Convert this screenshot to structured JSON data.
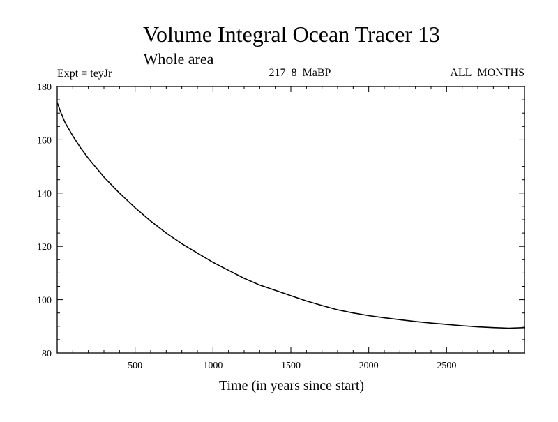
{
  "chart_data": {
    "type": "line",
    "title": "Volume Integral Ocean Tracer 13",
    "subtitle": "Whole area",
    "experiment_label": "Expt = teyJr",
    "run_label": "217_8_MaBP",
    "months_label": "ALL_MONTHS",
    "xlabel": "Time (in years since start)",
    "ylabel": "",
    "xlim": [
      0,
      3000
    ],
    "ylim": [
      80,
      180
    ],
    "x_ticks": [
      500,
      1000,
      1500,
      2000,
      2500
    ],
    "y_ticks": [
      80,
      100,
      120,
      140,
      160,
      180
    ],
    "grid": false,
    "series": [
      {
        "x": [
          0,
          25,
          50,
          100,
          150,
          200,
          250,
          300,
          400,
          500,
          600,
          700,
          800,
          900,
          1000,
          1100,
          1200,
          1300,
          1400,
          1500,
          1600,
          1700,
          1800,
          1900,
          2000,
          2100,
          2200,
          2300,
          2400,
          2500,
          2600,
          2700,
          2800,
          2900,
          3000
        ],
        "values": [
          174,
          170,
          166.5,
          161.5,
          157,
          153,
          149.5,
          146,
          140,
          134.5,
          129.5,
          125,
          121,
          117.5,
          114,
          111,
          108,
          105.5,
          103.5,
          101.5,
          99.5,
          97.8,
          96.2,
          95,
          94,
          93.2,
          92.5,
          91.8,
          91.2,
          90.7,
          90.2,
          89.8,
          89.5,
          89.3,
          89.5
        ]
      }
    ]
  }
}
